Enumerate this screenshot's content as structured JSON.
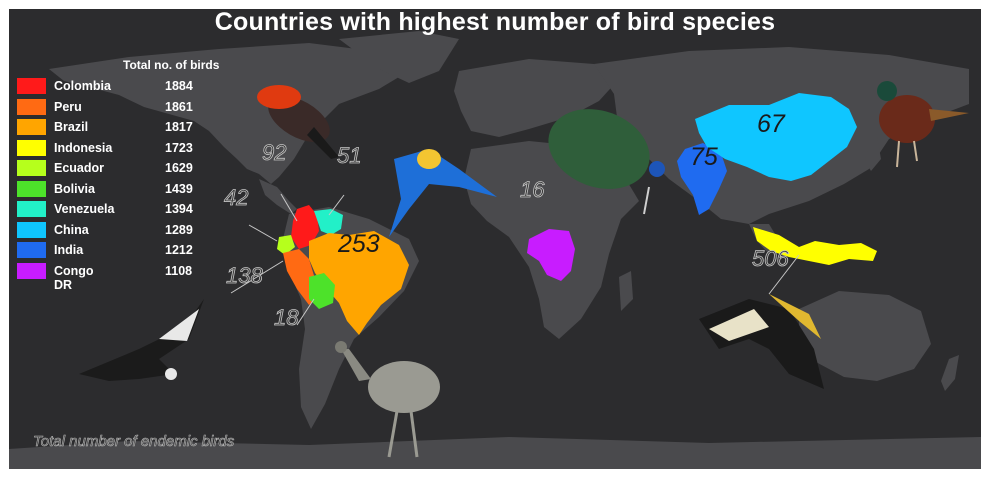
{
  "title": "Countries with highest number of bird species",
  "legend_header": "Total no. of birds",
  "footnote": "Total number of endemic birds",
  "chart_data": {
    "type": "choropleth map",
    "title": "Countries with highest number of bird species",
    "series": [
      {
        "name": "Total no. of birds",
        "values": [
          {
            "country": "Colombia",
            "value": 1884,
            "color": "#ff1a1a"
          },
          {
            "country": "Peru",
            "value": 1861,
            "color": "#ff6a13"
          },
          {
            "country": "Brazil",
            "value": 1817,
            "color": "#ffa500"
          },
          {
            "country": "Indonesia",
            "value": 1723,
            "color": "#ffff00"
          },
          {
            "country": "Ecuador",
            "value": 1629,
            "color": "#b6ff1c"
          },
          {
            "country": "Bolivia",
            "value": 1439,
            "color": "#4de22a"
          },
          {
            "country": "Venezuela",
            "value": 1394,
            "color": "#22f0c8"
          },
          {
            "country": "China",
            "value": 1289,
            "color": "#0fc6ff"
          },
          {
            "country": "India",
            "value": 1212,
            "color": "#1f6bf0"
          },
          {
            "country": "Congo DR",
            "value": 1108,
            "color": "#c81cff"
          }
        ]
      },
      {
        "name": "Total number of endemic birds",
        "values": [
          {
            "country": "Colombia",
            "value": 92
          },
          {
            "country": "Peru",
            "value": 138
          },
          {
            "country": "Brazil",
            "value": 253
          },
          {
            "country": "Indonesia",
            "value": 506
          },
          {
            "country": "Ecuador",
            "value": 42
          },
          {
            "country": "Bolivia",
            "value": 18
          },
          {
            "country": "Venezuela",
            "value": 51
          },
          {
            "country": "China",
            "value": 67
          },
          {
            "country": "India",
            "value": 75
          },
          {
            "country": "Congo DR",
            "value": 16
          }
        ]
      }
    ]
  },
  "colors": {
    "background": "#2c2c2e",
    "land": "#4a4a4d",
    "text": "#ffffff"
  },
  "illustrations": [
    "andean-cock-of-the-rock",
    "blue-and-yellow-macaw",
    "peacock",
    "pheasant",
    "andean-condor",
    "rhea",
    "hornbill"
  ]
}
